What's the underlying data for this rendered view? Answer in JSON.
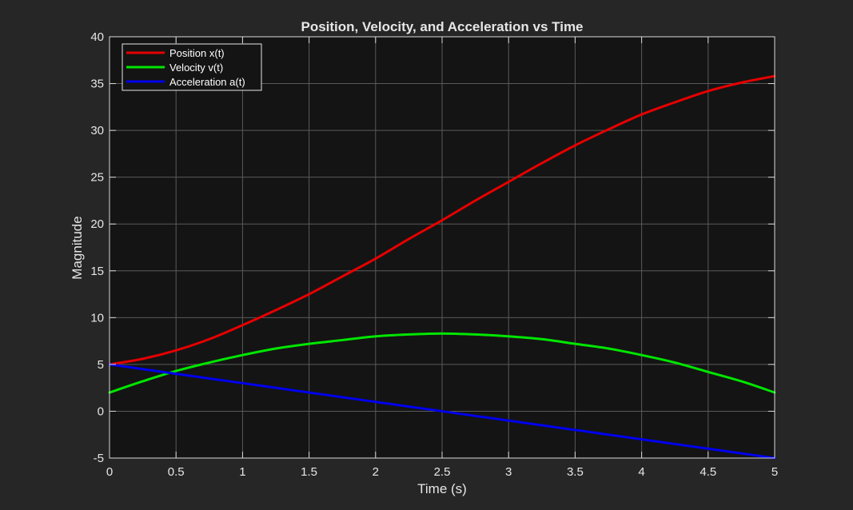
{
  "chart_data": {
    "type": "line",
    "title": "Position, Velocity, and Acceleration vs Time",
    "xlabel": "Time (s)",
    "ylabel": "Magnitude",
    "xlim": [
      0,
      5
    ],
    "ylim": [
      -5,
      40
    ],
    "xticks": [
      0,
      0.5,
      1,
      1.5,
      2,
      2.5,
      3,
      3.5,
      4,
      4.5,
      5
    ],
    "xtick_labels": [
      "0",
      "0.5",
      "1",
      "1.5",
      "2",
      "2.5",
      "3",
      "3.5",
      "4",
      "4.5",
      "5"
    ],
    "yticks": [
      -5,
      0,
      5,
      10,
      15,
      20,
      25,
      30,
      35,
      40
    ],
    "ytick_labels": [
      "-5",
      "0",
      "5",
      "10",
      "15",
      "20",
      "25",
      "30",
      "35",
      "40"
    ],
    "grid": true,
    "legend_position": "top-left",
    "x": [
      0,
      0.25,
      0.5,
      0.75,
      1,
      1.25,
      1.5,
      1.75,
      2,
      2.25,
      2.5,
      2.75,
      3,
      3.25,
      3.5,
      3.75,
      4,
      4.25,
      4.5,
      4.75,
      5
    ],
    "series": [
      {
        "name": "Position x(t)",
        "color": "#e60000",
        "values": [
          5.0,
          5.6,
          6.5,
          7.7,
          9.2,
          10.8,
          12.5,
          14.4,
          16.3,
          18.4,
          20.4,
          22.5,
          24.5,
          26.5,
          28.4,
          30.1,
          31.7,
          33.0,
          34.2,
          35.1,
          35.8
        ]
      },
      {
        "name": "Velocity v(t)",
        "color": "#00e600",
        "values": [
          2.0,
          3.2,
          4.3,
          5.2,
          6.0,
          6.7,
          7.2,
          7.6,
          8.0,
          8.2,
          8.3,
          8.2,
          8.0,
          7.7,
          7.2,
          6.7,
          6.0,
          5.2,
          4.2,
          3.2,
          2.0
        ]
      },
      {
        "name": "Acceleration a(t)",
        "color": "#0000ee",
        "values": [
          5.0,
          4.5,
          4.0,
          3.5,
          3.0,
          2.5,
          2.0,
          1.5,
          1.0,
          0.5,
          0.0,
          -0.5,
          -1.0,
          -1.5,
          -2.0,
          -2.5,
          -3.0,
          -3.5,
          -4.0,
          -4.5,
          -5.0
        ]
      }
    ]
  },
  "colors": {
    "figure_background": "#262626",
    "axes_background": "#141414",
    "grid": "#5a5a5a",
    "axis_box": "#d9d9d9",
    "text": "#e6e6e6"
  }
}
